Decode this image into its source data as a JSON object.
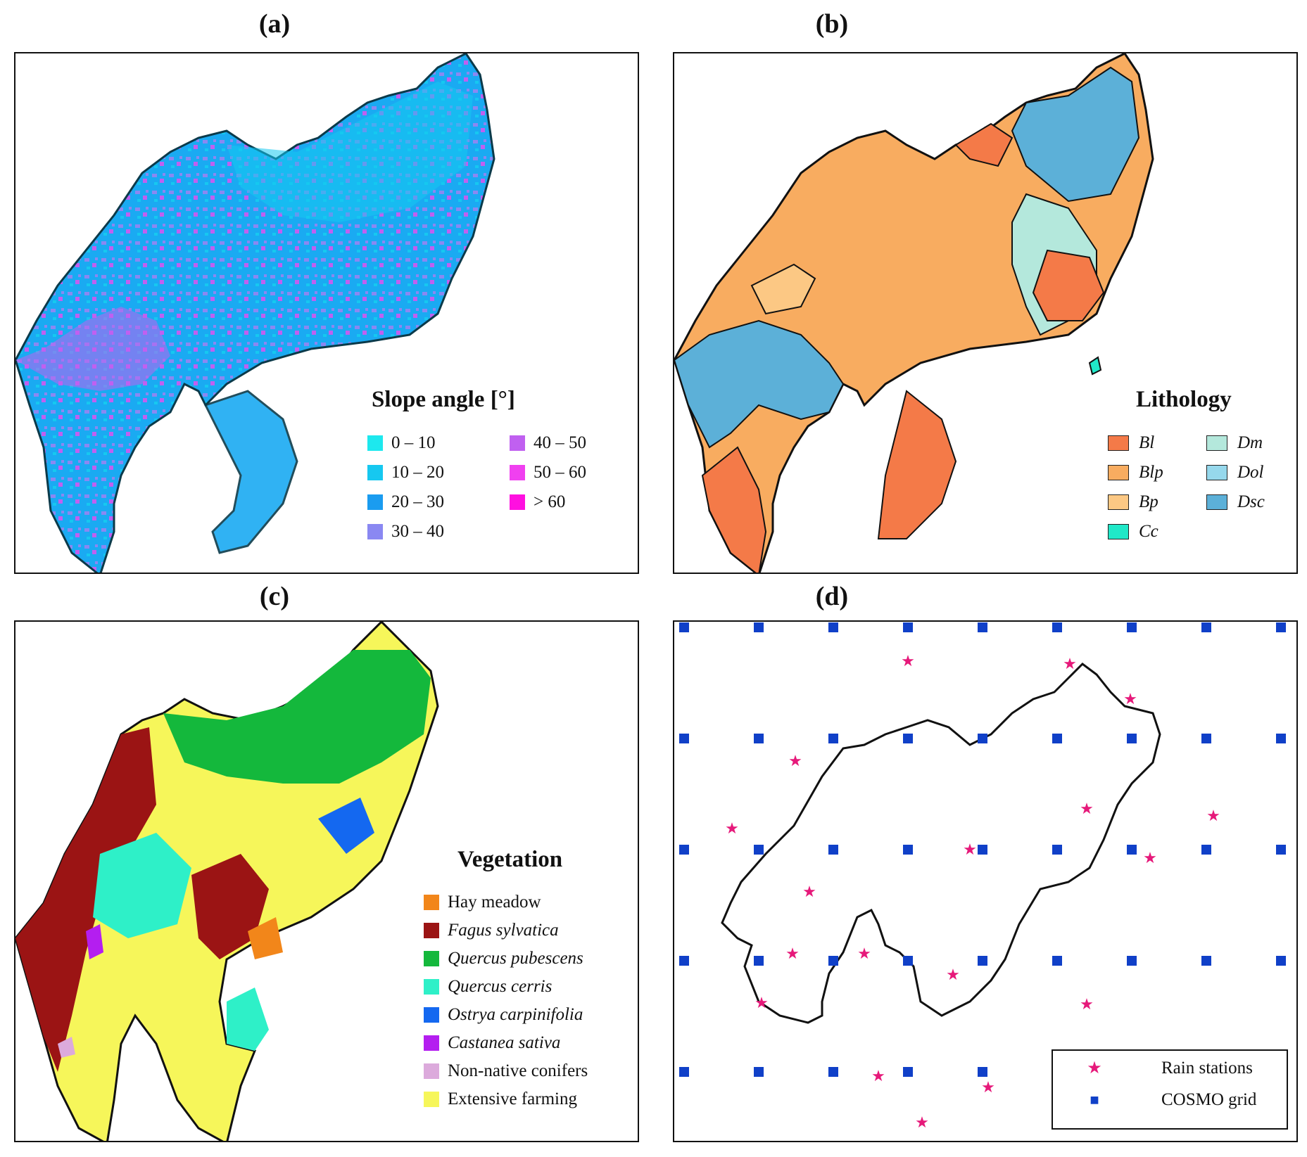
{
  "panels": {
    "a": {
      "label": "(a)",
      "legend_title": "Slope angle [°]",
      "classes": [
        {
          "label": "0 – 10",
          "color": "#1de8ee"
        },
        {
          "label": "10 – 20",
          "color": "#16c8f0"
        },
        {
          "label": "20 – 30",
          "color": "#1a9cf0"
        },
        {
          "label": "30 – 40",
          "color": "#8a88f2"
        },
        {
          "label": "40 – 50",
          "color": "#c060f0"
        },
        {
          "label": "50 – 60",
          "color": "#f040f0"
        },
        {
          "label": "> 60",
          "color": "#ff10e0"
        }
      ]
    },
    "b": {
      "label": "(b)",
      "legend_title": "Lithology",
      "classes": [
        {
          "label": "Bl",
          "color": "#f47a48"
        },
        {
          "label": "Blp",
          "color": "#f8ac60"
        },
        {
          "label": "Bp",
          "color": "#fcc884"
        },
        {
          "label": "Cc",
          "color": "#20e8c8"
        },
        {
          "label": "Dm",
          "color": "#b4e8dc"
        },
        {
          "label": "Dol",
          "color": "#96d8ec"
        },
        {
          "label": "Dsc",
          "color": "#5cb0d8"
        }
      ]
    },
    "c": {
      "label": "(c)",
      "legend_title": "Vegetation",
      "classes": [
        {
          "label": "Hay meadow",
          "color": "#f2861a",
          "italic": false
        },
        {
          "label": "Fagus sylvatica",
          "color": "#9b1414",
          "italic": true
        },
        {
          "label": "Quercus pubescens",
          "color": "#14b83c",
          "italic": true
        },
        {
          "label": "Quercus cerris",
          "color": "#2ef0c8",
          "italic": true
        },
        {
          "label": "Ostrya carpinifolia",
          "color": "#1468f0",
          "italic": true
        },
        {
          "label": "Castanea sativa",
          "color": "#b41ef0",
          "italic": true
        },
        {
          "label": "Non-native conifers",
          "color": "#dcaadc",
          "italic": false
        },
        {
          "label": "Extensive farming",
          "color": "#f6f65a",
          "italic": false
        }
      ]
    },
    "d": {
      "label": "(d)",
      "legend": [
        {
          "label": "Rain stations",
          "symbol": "★",
          "color": "#e6197a"
        },
        {
          "label": "COSMO grid",
          "symbol": "■",
          "color": "#1040c8"
        }
      ]
    }
  }
}
